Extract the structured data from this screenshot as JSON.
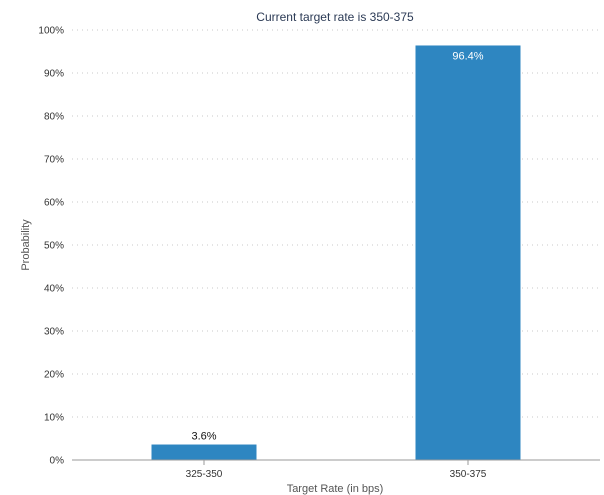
{
  "chart_data": {
    "type": "bar",
    "title": "Current target rate is 350-375",
    "xlabel": "Target Rate (in bps)",
    "ylabel": "Probability",
    "categories": [
      "325-350",
      "350-375"
    ],
    "values": [
      3.6,
      96.4
    ],
    "data_labels": [
      "3.6%",
      "96.4%"
    ],
    "ylim": [
      0,
      100
    ],
    "yticks": [
      0,
      10,
      20,
      30,
      40,
      50,
      60,
      70,
      80,
      90,
      100
    ],
    "ytick_labels": [
      "0%",
      "10%",
      "20%",
      "30%",
      "40%",
      "50%",
      "60%",
      "70%",
      "80%",
      "90%",
      "100%"
    ],
    "grid": true,
    "legend": "none",
    "colors": {
      "bar": "#2e86c1",
      "grid": "#c8c8c8",
      "axis": "#9a9a9a"
    }
  }
}
